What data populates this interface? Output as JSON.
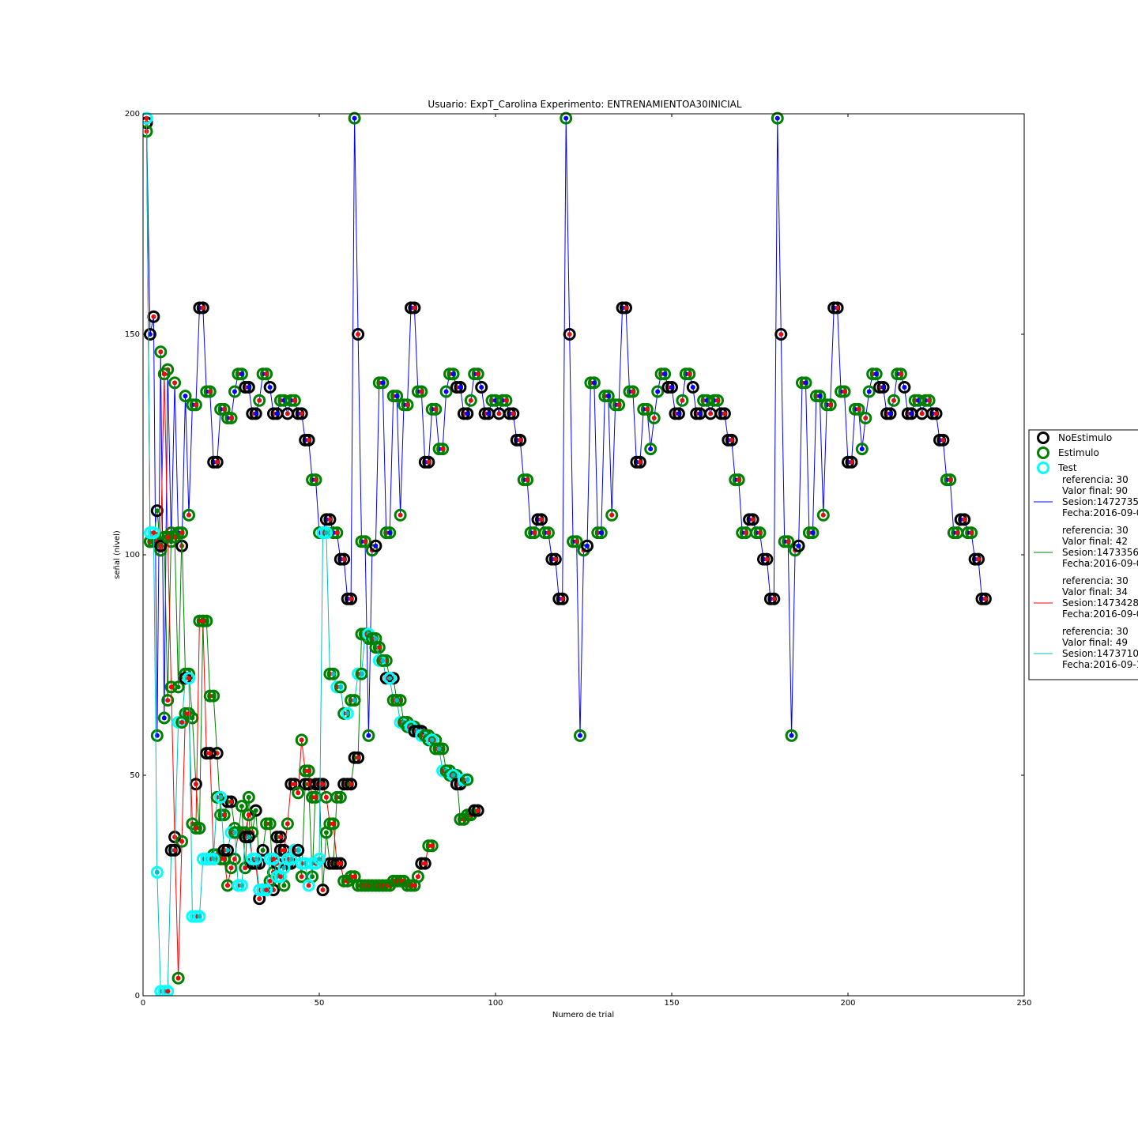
{
  "chart_data": {
    "type": "line",
    "title": "Usuario: ExpT_Carolina Experimento: ENTRENAMIENTOA30INICIAL",
    "xlabel": "Numero de trial",
    "ylabel": "señal (nivel)",
    "xlim": [
      0,
      250
    ],
    "ylim": [
      0,
      200
    ],
    "xticks": [
      0,
      50,
      100,
      150,
      200,
      250
    ],
    "yticks": [
      0,
      50,
      100,
      150,
      200
    ],
    "grid": false,
    "legend_position": "right, partly outside plot",
    "marker_legend": [
      {
        "label": "NoEstimulo",
        "color": "#000000"
      },
      {
        "label": "Estimulo",
        "color": "#008000"
      },
      {
        "label": "Test",
        "color": "#00ffff"
      }
    ],
    "series": [
      {
        "legend_lines": [
          "referencia: 30",
          "Valor final: 90",
          "Sesion:1472735",
          "Fecha:2016-09-0"
        ],
        "color": "#0000ff",
        "y": [
          198,
          150,
          154,
          59,
          146,
          63,
          142,
          103,
          139,
          105,
          102,
          136,
          109,
          134,
          134,
          156,
          156,
          137,
          137,
          121,
          121,
          133,
          133,
          131,
          131,
          137,
          141,
          141,
          138,
          138,
          132,
          132,
          135,
          141,
          141,
          138,
          132,
          132,
          135,
          135,
          132,
          135,
          135,
          132,
          132,
          126,
          126,
          117,
          117,
          105,
          105,
          108,
          108,
          105,
          105,
          99,
          99,
          90,
          90,
          199,
          150,
          103,
          103,
          59,
          101,
          102,
          139,
          139,
          105,
          105,
          136,
          136,
          109,
          134,
          134,
          156,
          156,
          137,
          137,
          121,
          121,
          133,
          133,
          124,
          124,
          137,
          141,
          141,
          138,
          138,
          132,
          132,
          135,
          141,
          141,
          138,
          132,
          132,
          135,
          135,
          132,
          135,
          135,
          132,
          132,
          126,
          126,
          117,
          117,
          105,
          105,
          108,
          108,
          105,
          105,
          99,
          99,
          90,
          90,
          199,
          150,
          103,
          103,
          59,
          101,
          102,
          139,
          139,
          105,
          105,
          136,
          136,
          109,
          134,
          134,
          156,
          156,
          137,
          137,
          121,
          121,
          133,
          133,
          124,
          131,
          137,
          141,
          141,
          138,
          138,
          132,
          132,
          135,
          141,
          141,
          138,
          132,
          132,
          135,
          135,
          132,
          135,
          135,
          132,
          132,
          126,
          126,
          117,
          117,
          105,
          105,
          108,
          108,
          105,
          105,
          99,
          99,
          90,
          90,
          199,
          150,
          103,
          103,
          59,
          101,
          102,
          139,
          139,
          105,
          105,
          136,
          136,
          109,
          134,
          134,
          156,
          156,
          137,
          137,
          121,
          121,
          133,
          133,
          124,
          131,
          137,
          141,
          141,
          138,
          138,
          132,
          132,
          135,
          141,
          141,
          138,
          132,
          132,
          135,
          135,
          132,
          135,
          135,
          132,
          132,
          126,
          126,
          117,
          117,
          105,
          105,
          108,
          108,
          105,
          105,
          99,
          99,
          90,
          90
        ]
      },
      {
        "legend_lines": [
          "referencia: 30",
          "Valor final: 42",
          "Sesion:1473356",
          "Fecha:2016-09-0"
        ],
        "color": "#008000",
        "y": [
          198,
          103,
          103,
          110,
          101,
          104,
          67,
          105,
          104,
          70,
          105,
          73,
          73,
          63,
          48,
          38,
          85,
          85,
          68,
          68,
          55,
          41,
          41,
          44,
          44,
          38,
          37,
          43,
          29,
          45,
          37,
          42,
          30,
          33,
          39,
          39,
          24,
          36,
          36,
          25,
          30,
          30,
          33,
          33,
          27,
          48,
          48,
          27,
          48,
          48,
          24,
          37,
          30,
          30,
          45,
          45,
          48,
          48,
          48,
          54,
          54,
          82,
          82,
          81,
          81,
          79,
          79,
          76,
          76,
          72,
          72,
          67,
          67,
          62,
          62,
          61,
          61,
          60,
          60,
          59,
          59,
          58,
          58,
          56,
          56,
          51,
          51,
          50,
          50,
          40,
          40,
          41,
          41,
          42,
          42
        ]
      },
      {
        "legend_lines": [
          "referencia: 30",
          "Valor final: 34",
          "Sesion:1473428",
          "Fecha:2016-09-0"
        ],
        "color": "#ff0000",
        "y": [
          196,
          103,
          104,
          103,
          102,
          141,
          104,
          70,
          36,
          4,
          35,
          64,
          64,
          39,
          38,
          85,
          85,
          55,
          55,
          32,
          32,
          31,
          31,
          25,
          29,
          31,
          37,
          37,
          37,
          41,
          30,
          30,
          22,
          24,
          24,
          26,
          28,
          30,
          33,
          33,
          39,
          48,
          48,
          46,
          58,
          51,
          51,
          45,
          45,
          48,
          48,
          45,
          39,
          39,
          30,
          30,
          26,
          26,
          27,
          27,
          25,
          25,
          25,
          25,
          25,
          25,
          25,
          25,
          25,
          25,
          26,
          26,
          26,
          26,
          25,
          25,
          25,
          27,
          30,
          30,
          34,
          34
        ]
      },
      {
        "legend_lines": [
          "referencia: 30",
          "Valor final: 49",
          "Sesion:1473710",
          "Fecha:2016-09-1"
        ],
        "color": "#00bfbf",
        "y": [
          199,
          105,
          105,
          28,
          1,
          1,
          1,
          33,
          33,
          62,
          62,
          72,
          72,
          18,
          18,
          18,
          31,
          31,
          31,
          31,
          45,
          45,
          33,
          33,
          37,
          37,
          25,
          25,
          36,
          36,
          31,
          31,
          24,
          24,
          24,
          31,
          31,
          27,
          27,
          29,
          31,
          31,
          33,
          33,
          30,
          30,
          25,
          30,
          30,
          31,
          105,
          105,
          73,
          73,
          70,
          70,
          64,
          64,
          67,
          67,
          73,
          73,
          82,
          82,
          81,
          81,
          76,
          76,
          72,
          72,
          67,
          67,
          62,
          62,
          61,
          61,
          60,
          60,
          59,
          59,
          58,
          58,
          56,
          56,
          51,
          51,
          50,
          50,
          48,
          48,
          49,
          49
        ]
      }
    ]
  }
}
